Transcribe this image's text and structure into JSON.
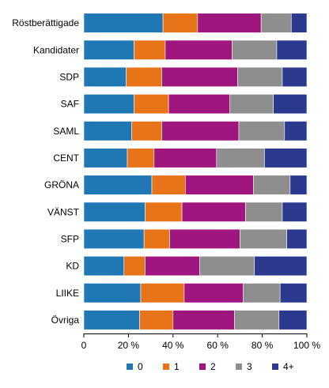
{
  "chart_data": {
    "type": "bar",
    "orientation": "horizontal",
    "stacked": "percent",
    "title": "",
    "xlabel": "",
    "ylabel": "",
    "xlim": [
      0,
      100
    ],
    "x_ticks": [
      "0",
      "20 %",
      "40 %",
      "60 %",
      "80 %",
      "100 %"
    ],
    "grid": false,
    "legend_position": "bottom",
    "categories": [
      "Röstberättigade",
      "Kandidater",
      "SDP",
      "SAF",
      "SAML",
      "CENT",
      "GRÖNA",
      "VÄNST",
      "SFP",
      "KD",
      "LIIKE",
      "Övriga"
    ],
    "series": [
      {
        "name": "0",
        "color": "#1f77b4",
        "values": [
          35.5,
          22.5,
          19.0,
          22.5,
          21.5,
          19.5,
          30.5,
          27.5,
          27.0,
          18.0,
          25.5,
          25.0
        ]
      },
      {
        "name": "1",
        "color": "#e8741a",
        "values": [
          15.5,
          14.0,
          16.0,
          15.5,
          13.5,
          12.0,
          15.0,
          16.5,
          11.5,
          9.5,
          19.5,
          15.0
        ]
      },
      {
        "name": "2",
        "color": "#a0167f",
        "values": [
          28.5,
          30.0,
          34.0,
          27.5,
          34.5,
          28.0,
          30.5,
          28.5,
          31.5,
          24.5,
          26.5,
          27.5
        ]
      },
      {
        "name": "3",
        "color": "#8e8e8e",
        "values": [
          13.5,
          20.0,
          20.0,
          19.5,
          20.5,
          21.5,
          16.5,
          16.5,
          21.0,
          24.5,
          16.5,
          20.0
        ]
      },
      {
        "name": "4+",
        "color": "#2b3a8f",
        "values": [
          7.0,
          13.5,
          11.0,
          15.0,
          10.0,
          19.0,
          7.5,
          11.0,
          9.0,
          23.5,
          12.0,
          12.5
        ]
      }
    ]
  }
}
